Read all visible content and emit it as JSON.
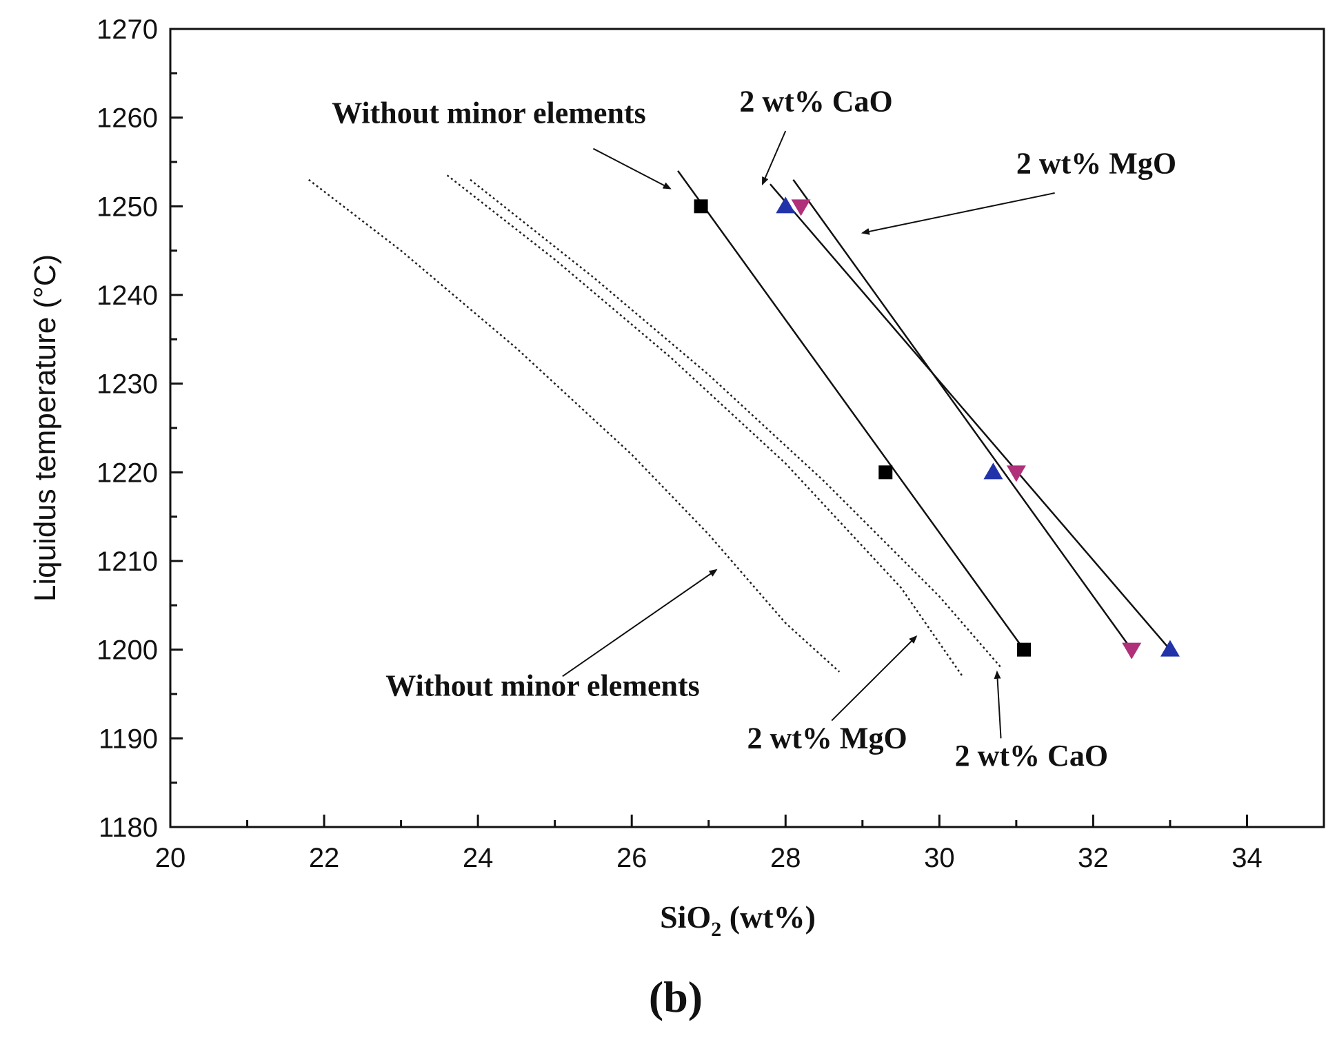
{
  "chart_data": {
    "type": "scatter",
    "title": "",
    "panel_label": "(b)",
    "xlabel": {
      "prefix": "SiO",
      "subscript": "2",
      "suffix": " (wt%)"
    },
    "ylabel": "Liquidus temperature (°C)",
    "xlim": [
      20,
      35
    ],
    "ylim": [
      1180,
      1270
    ],
    "xticks": [
      20,
      22,
      24,
      26,
      28,
      30,
      32,
      34
    ],
    "yticks": [
      1180,
      1190,
      1200,
      1210,
      1220,
      1230,
      1240,
      1250,
      1260,
      1270
    ],
    "grid": false,
    "colors": {
      "black": "#000000",
      "blue": "#2233aa",
      "magenta": "#b0307a"
    },
    "series": [
      {
        "name": "Without minor elements (measured)",
        "marker": "square",
        "color": "#000000",
        "points": [
          [
            26.9,
            1250
          ],
          [
            29.3,
            1220
          ],
          [
            31.1,
            1200
          ]
        ],
        "fit_line": [
          [
            26.6,
            1254
          ],
          [
            31.1,
            1200
          ]
        ]
      },
      {
        "name": "2 wt% CaO (measured)",
        "marker": "triangle-up",
        "color": "#2233aa",
        "points": [
          [
            28.0,
            1250
          ],
          [
            30.7,
            1220
          ],
          [
            33.0,
            1200
          ]
        ],
        "fit_line": [
          [
            27.8,
            1252.5
          ],
          [
            33.0,
            1200
          ]
        ]
      },
      {
        "name": "2 wt% MgO (measured)",
        "marker": "triangle-down",
        "color": "#b0307a",
        "points": [
          [
            28.2,
            1250
          ],
          [
            31.0,
            1220
          ],
          [
            32.5,
            1200
          ]
        ],
        "fit_line": [
          [
            28.1,
            1253
          ],
          [
            32.5,
            1200
          ]
        ]
      },
      {
        "name": "Without minor elements (calculated)",
        "style": "dotted",
        "points": [
          [
            21.8,
            1253
          ],
          [
            23.0,
            1245
          ],
          [
            24.5,
            1234
          ],
          [
            26.0,
            1222
          ],
          [
            27.0,
            1213
          ],
          [
            28.0,
            1203
          ],
          [
            28.7,
            1197.5
          ]
        ]
      },
      {
        "name": "2 wt% MgO (calculated)",
        "style": "dotted",
        "points": [
          [
            23.6,
            1253.5
          ],
          [
            25.0,
            1244
          ],
          [
            26.5,
            1233
          ],
          [
            28.0,
            1221
          ],
          [
            29.5,
            1207
          ],
          [
            30.3,
            1197
          ]
        ]
      },
      {
        "name": "2 wt% CaO (calculated)",
        "style": "dotted",
        "points": [
          [
            23.9,
            1253
          ],
          [
            25.5,
            1242
          ],
          [
            27.0,
            1231
          ],
          [
            28.5,
            1219
          ],
          [
            30.0,
            1206
          ],
          [
            30.8,
            1198
          ]
        ]
      }
    ],
    "annotations": [
      {
        "text": "Without minor elements",
        "text_at": [
          22.1,
          1259.4
        ],
        "arrow_from": [
          25.5,
          1256.5
        ],
        "arrow_to": [
          26.5,
          1252
        ]
      },
      {
        "text": "2 wt% CaO",
        "text_at": [
          27.4,
          1260.7
        ],
        "arrow_from": [
          28.0,
          1258.5
        ],
        "arrow_to": [
          27.7,
          1252.5
        ]
      },
      {
        "text": "2 wt% MgO",
        "text_at": [
          31.0,
          1253.7
        ],
        "arrow_from": [
          31.5,
          1251.5
        ],
        "arrow_to": [
          29.0,
          1247
        ]
      },
      {
        "text": "Without minor elements",
        "text_at": [
          22.8,
          1194.8
        ],
        "arrow_from": [
          25.1,
          1197
        ],
        "arrow_to": [
          27.1,
          1209
        ]
      },
      {
        "text": "2 wt% MgO",
        "text_at": [
          27.5,
          1188.9
        ],
        "arrow_from": [
          28.6,
          1192
        ],
        "arrow_to": [
          29.7,
          1201.5
        ]
      },
      {
        "text": "2 wt% CaO",
        "text_at": [
          30.2,
          1186.9
        ],
        "arrow_from": [
          30.8,
          1190
        ],
        "arrow_to": [
          30.75,
          1197.5
        ]
      }
    ]
  }
}
